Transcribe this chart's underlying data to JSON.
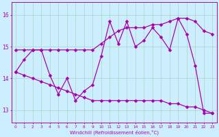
{
  "xlabel": "Windchill (Refroidissement éolien,°C)",
  "hours": [
    0,
    1,
    2,
    3,
    4,
    5,
    6,
    7,
    8,
    9,
    10,
    11,
    12,
    13,
    14,
    15,
    16,
    17,
    18,
    19,
    20,
    21,
    22,
    23
  ],
  "temp": [
    14.2,
    14.6,
    14.9,
    14.9,
    14.1,
    13.5,
    14.0,
    13.3,
    13.6,
    13.8,
    14.7,
    15.8,
    15.1,
    15.8,
    15.0,
    15.2,
    15.6,
    15.3,
    14.9,
    15.9,
    15.4,
    14.4,
    12.9,
    12.9
  ],
  "max_line": [
    14.9,
    14.9,
    14.9,
    14.9,
    14.9,
    14.9,
    14.9,
    14.9,
    14.9,
    14.9,
    15.1,
    15.3,
    15.5,
    15.6,
    15.6,
    15.6,
    15.7,
    15.7,
    15.8,
    15.9,
    15.9,
    15.8,
    15.5,
    15.4
  ],
  "min_line": [
    14.2,
    14.1,
    14.0,
    13.9,
    13.8,
    13.7,
    13.6,
    13.5,
    13.4,
    13.3,
    13.3,
    13.3,
    13.3,
    13.3,
    13.3,
    13.3,
    13.3,
    13.3,
    13.2,
    13.2,
    13.1,
    13.1,
    13.0,
    12.9
  ],
  "line_color": "#aa00aa",
  "bg_color": "#cceeff",
  "grid_color": "#aaddcc",
  "ylim": [
    12.6,
    16.4
  ],
  "yticks": [
    13,
    14,
    15,
    16
  ],
  "markersize": 2.5,
  "linewidth": 0.9
}
